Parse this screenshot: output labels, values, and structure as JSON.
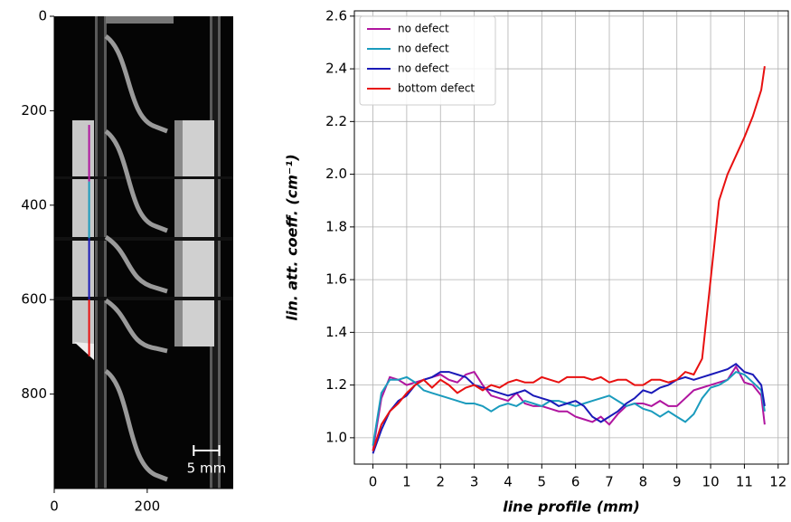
{
  "chart_data": [
    {
      "type": "image",
      "xlim": [
        0,
        385
      ],
      "ylim": [
        1000,
        0
      ],
      "xticks": [
        0,
        200
      ],
      "yticks": [
        0,
        200,
        400,
        600,
        800
      ],
      "profiles": [
        {
          "color": "#b0159f",
          "x": 75,
          "y": [
            230,
            350
          ]
        },
        {
          "color": "#1a9bbd",
          "x": 75,
          "y": [
            350,
            470
          ]
        },
        {
          "color": "#1a1ab8",
          "x": 75,
          "y": [
            470,
            600
          ]
        },
        {
          "color": "#e81010",
          "x": 75,
          "y": [
            600,
            720
          ]
        }
      ],
      "scale_bar": {
        "label": "5 mm",
        "length": 55
      }
    },
    {
      "type": "line",
      "xlabel": "line profile (mm)",
      "ylabel": "lin. att. coeff. (cm⁻¹)",
      "xlim": [
        -0.55,
        12.3
      ],
      "ylim": [
        0.9,
        2.62
      ],
      "xticks": [
        0,
        1,
        2,
        3,
        4,
        5,
        6,
        7,
        8,
        9,
        10,
        11,
        12
      ],
      "yticks": [
        {
          "value": 1,
          "label": "1.0"
        },
        1.2,
        1.4,
        1.6,
        1.8,
        {
          "value": 2,
          "label": "2.0"
        },
        2.2,
        2.4,
        2.6
      ],
      "grid": true,
      "legend": "upper-left",
      "x": [
        0,
        0.25,
        0.5,
        0.75,
        1,
        1.25,
        1.5,
        1.75,
        2,
        2.25,
        2.5,
        2.75,
        3,
        3.25,
        3.5,
        3.75,
        4,
        4.25,
        4.5,
        4.75,
        5,
        5.25,
        5.5,
        5.75,
        6,
        6.25,
        6.5,
        6.75,
        7,
        7.25,
        7.5,
        7.75,
        8,
        8.25,
        8.5,
        8.75,
        9,
        9.25,
        9.5,
        9.75,
        10,
        10.25,
        10.5,
        10.75,
        11,
        11.25,
        11.5,
        11.6
      ],
      "series": [
        {
          "name": "no defect",
          "color": "#b0159f",
          "values": [
            0.95,
            1.15,
            1.23,
            1.22,
            1.2,
            1.21,
            1.22,
            1.23,
            1.24,
            1.22,
            1.21,
            1.24,
            1.25,
            1.2,
            1.16,
            1.15,
            1.14,
            1.17,
            1.13,
            1.12,
            1.12,
            1.11,
            1.1,
            1.1,
            1.08,
            1.07,
            1.06,
            1.08,
            1.05,
            1.09,
            1.12,
            1.13,
            1.13,
            1.12,
            1.14,
            1.12,
            1.12,
            1.15,
            1.18,
            1.19,
            1.2,
            1.21,
            1.22,
            1.27,
            1.21,
            1.2,
            1.16,
            1.05
          ]
        },
        {
          "name": "no defect",
          "color": "#1a9bbd",
          "values": [
            0.97,
            1.17,
            1.22,
            1.22,
            1.23,
            1.21,
            1.18,
            1.17,
            1.16,
            1.15,
            1.14,
            1.13,
            1.13,
            1.12,
            1.1,
            1.12,
            1.13,
            1.12,
            1.14,
            1.13,
            1.12,
            1.14,
            1.14,
            1.13,
            1.12,
            1.13,
            1.14,
            1.15,
            1.16,
            1.14,
            1.12,
            1.13,
            1.11,
            1.1,
            1.08,
            1.1,
            1.08,
            1.06,
            1.09,
            1.15,
            1.19,
            1.2,
            1.22,
            1.25,
            1.24,
            1.21,
            1.18,
            1.1
          ]
        },
        {
          "name": "no defect",
          "color": "#1a1ab8",
          "values": [
            0.94,
            1.03,
            1.1,
            1.14,
            1.16,
            1.2,
            1.22,
            1.23,
            1.25,
            1.25,
            1.24,
            1.23,
            1.2,
            1.19,
            1.18,
            1.17,
            1.16,
            1.17,
            1.18,
            1.16,
            1.15,
            1.14,
            1.12,
            1.13,
            1.14,
            1.12,
            1.08,
            1.06,
            1.08,
            1.1,
            1.13,
            1.15,
            1.18,
            1.17,
            1.19,
            1.2,
            1.22,
            1.23,
            1.22,
            1.23,
            1.24,
            1.25,
            1.26,
            1.28,
            1.25,
            1.24,
            1.2,
            1.12
          ]
        },
        {
          "name": "bottom defect",
          "color": "#e81010",
          "values": [
            0.95,
            1.05,
            1.1,
            1.13,
            1.17,
            1.2,
            1.22,
            1.19,
            1.22,
            1.2,
            1.17,
            1.19,
            1.2,
            1.18,
            1.2,
            1.19,
            1.21,
            1.22,
            1.21,
            1.21,
            1.23,
            1.22,
            1.21,
            1.23,
            1.23,
            1.23,
            1.22,
            1.23,
            1.21,
            1.22,
            1.22,
            1.2,
            1.2,
            1.22,
            1.22,
            1.21,
            1.22,
            1.25,
            1.24,
            1.3,
            1.6,
            1.9,
            2.0,
            2.07,
            2.14,
            2.22,
            2.32,
            2.41
          ]
        }
      ]
    }
  ]
}
